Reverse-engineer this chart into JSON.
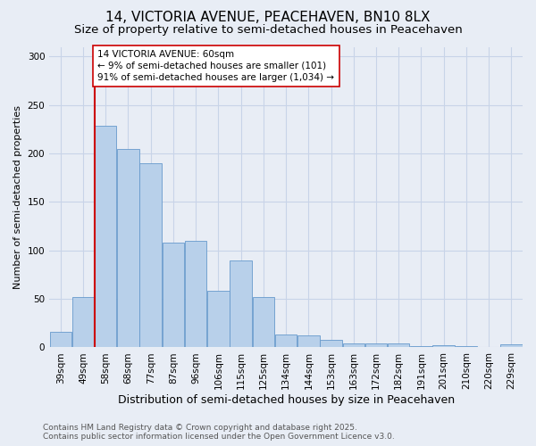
{
  "title": "14, VICTORIA AVENUE, PEACEHAVEN, BN10 8LX",
  "subtitle": "Size of property relative to semi-detached houses in Peacehaven",
  "xlabel": "Distribution of semi-detached houses by size in Peacehaven",
  "ylabel": "Number of semi-detached properties",
  "categories": [
    "39sqm",
    "49sqm",
    "58sqm",
    "68sqm",
    "77sqm",
    "87sqm",
    "96sqm",
    "106sqm",
    "115sqm",
    "125sqm",
    "134sqm",
    "144sqm",
    "153sqm",
    "163sqm",
    "172sqm",
    "182sqm",
    "191sqm",
    "201sqm",
    "210sqm",
    "220sqm",
    "229sqm"
  ],
  "values": [
    16,
    52,
    229,
    205,
    190,
    108,
    110,
    58,
    90,
    52,
    13,
    12,
    8,
    4,
    4,
    4,
    1,
    2,
    1,
    0,
    3
  ],
  "bar_color": "#b8d0ea",
  "bar_edge_color": "#6699cc",
  "grid_color": "#c8d4e8",
  "background_color": "#e8edf5",
  "vline_x": 1.5,
  "vline_color": "#cc0000",
  "annotation_text": "14 VICTORIA AVENUE: 60sqm\n← 9% of semi-detached houses are smaller (101)\n91% of semi-detached houses are larger (1,034) →",
  "annotation_box_facecolor": "#ffffff",
  "annotation_box_edgecolor": "#cc0000",
  "ylim": [
    0,
    310
  ],
  "yticks": [
    0,
    50,
    100,
    150,
    200,
    250,
    300
  ],
  "footer_text": "Contains HM Land Registry data © Crown copyright and database right 2025.\nContains public sector information licensed under the Open Government Licence v3.0.",
  "title_fontsize": 11,
  "subtitle_fontsize": 9.5,
  "xlabel_fontsize": 9,
  "ylabel_fontsize": 8,
  "tick_fontsize": 7.5,
  "annotation_fontsize": 7.5,
  "footer_fontsize": 6.5
}
